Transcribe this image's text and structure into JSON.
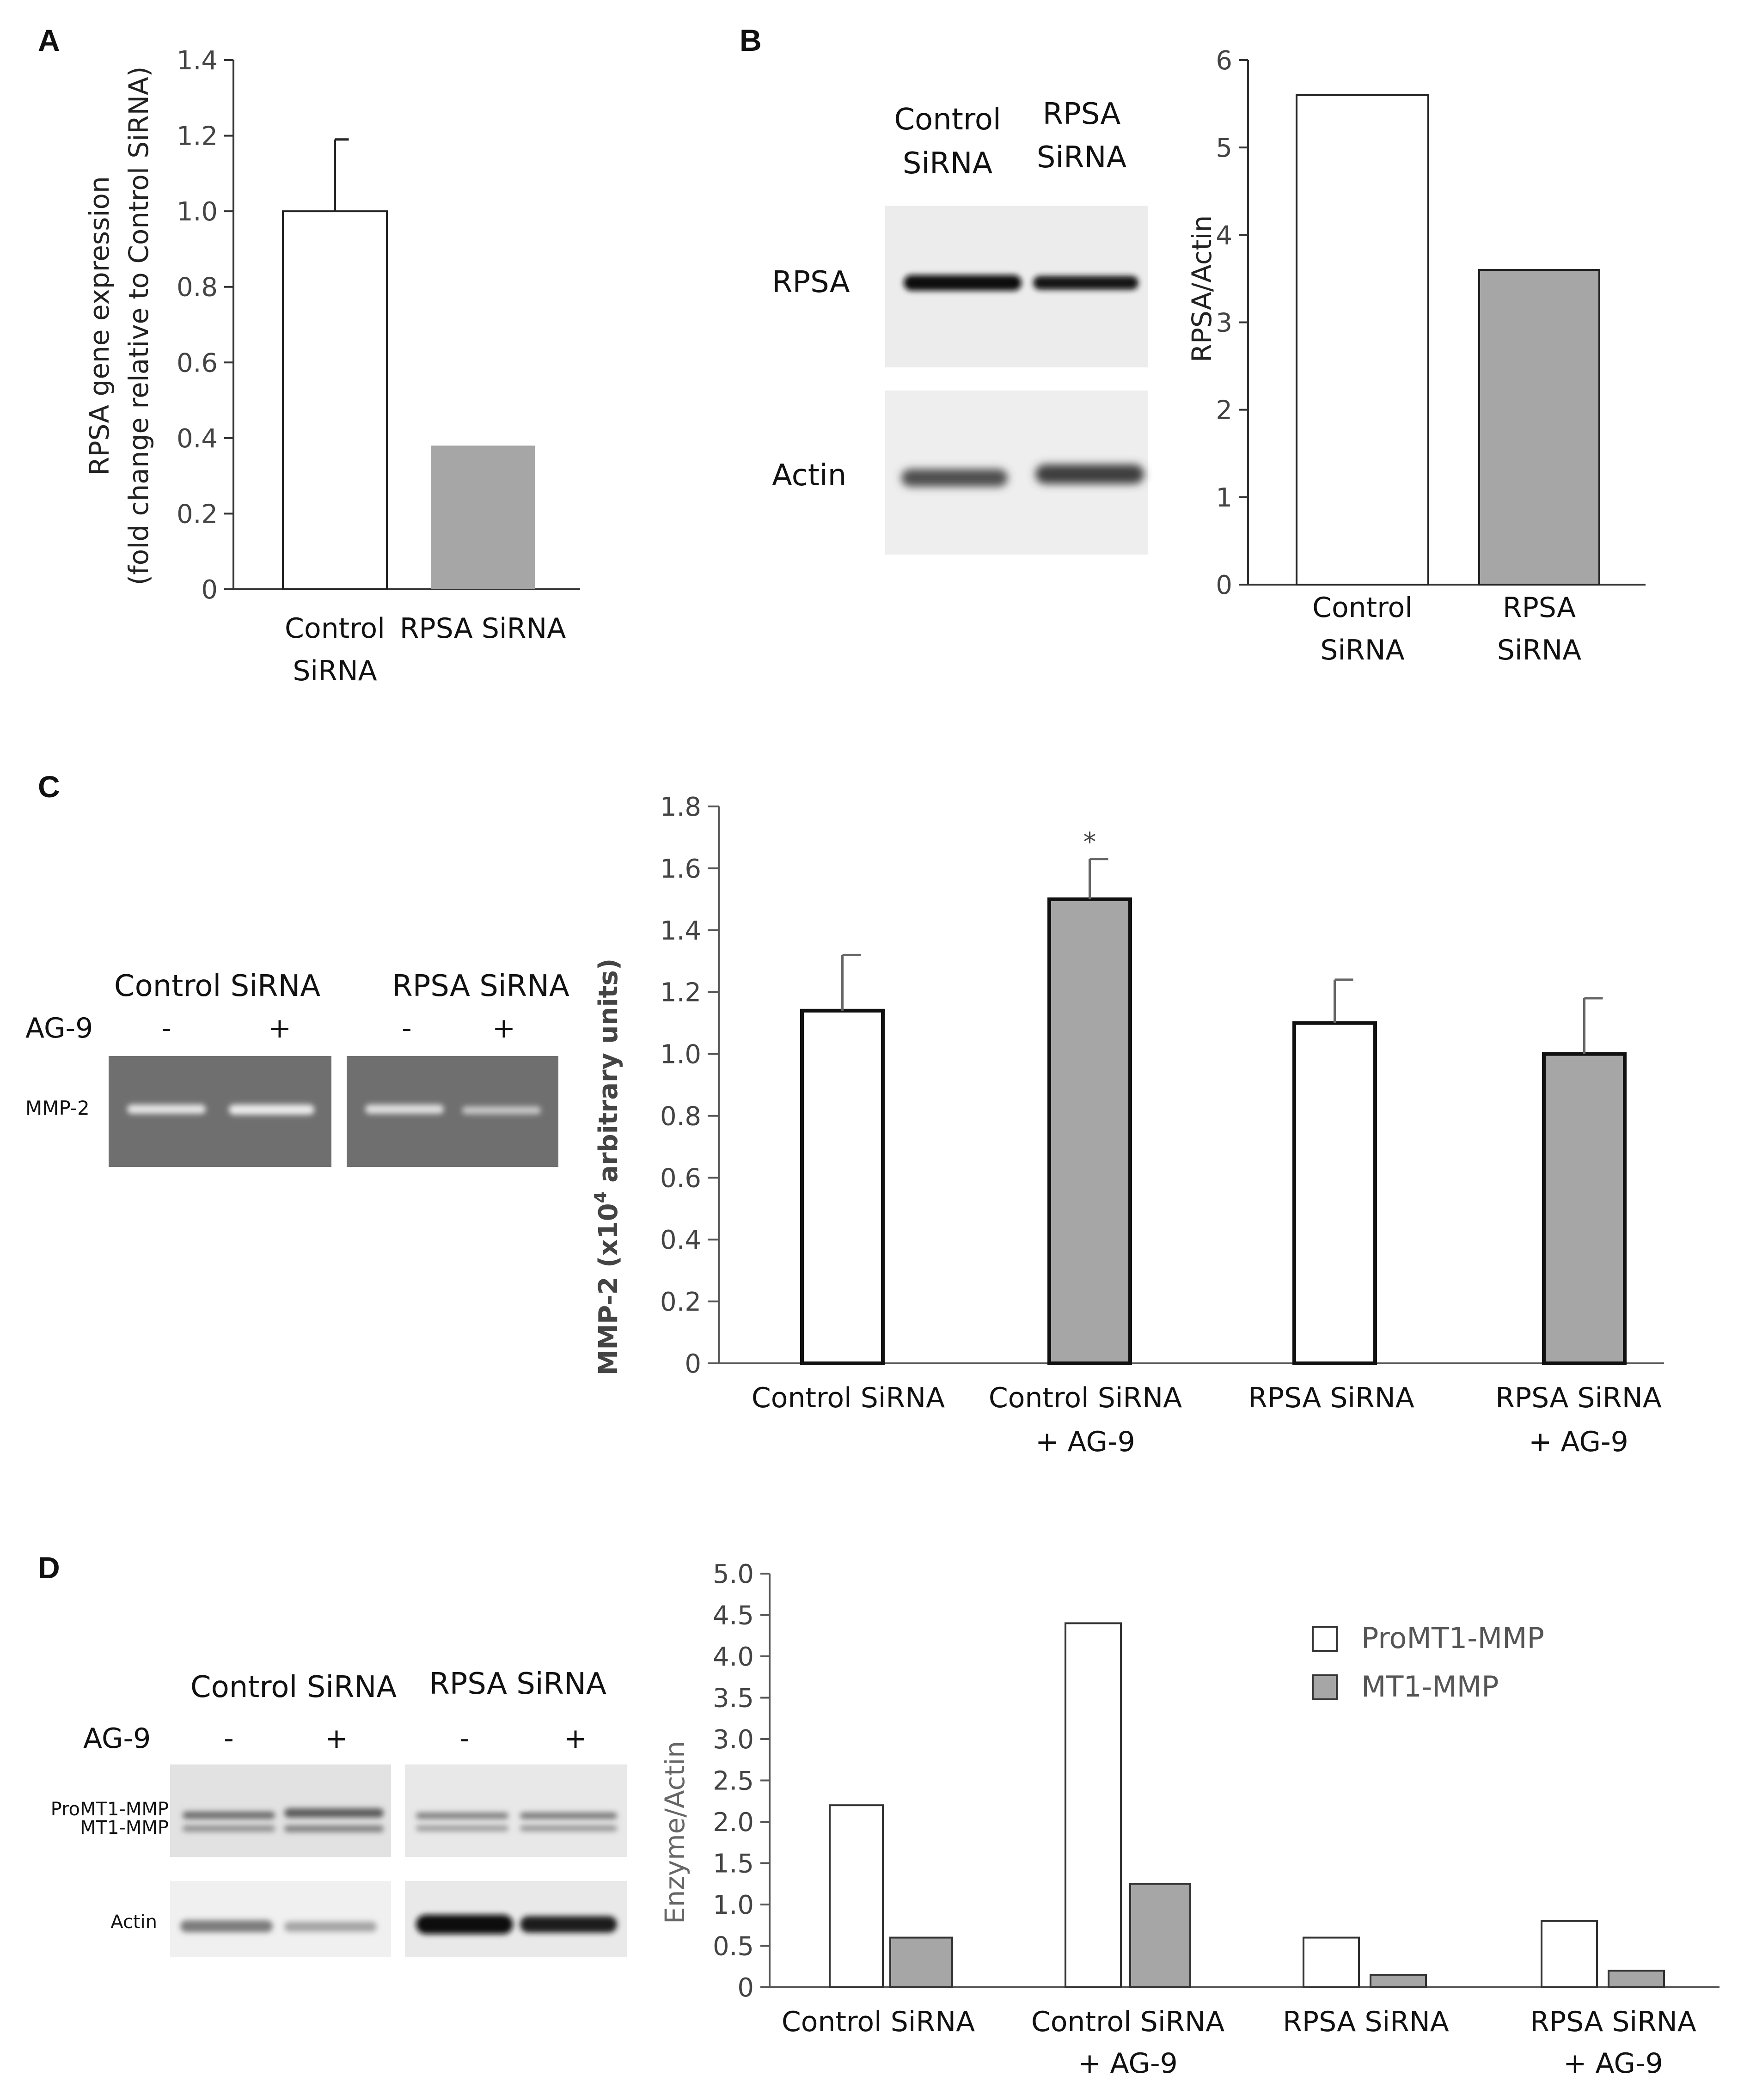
{
  "colors": {
    "white_bar": "#ffffff",
    "gray_bar": "#a6a6a6",
    "axis": "#333333",
    "gel_bg": "#6e6e6e"
  },
  "panels": {
    "A": {
      "letter": "A",
      "ylabel_line1": "RPSA gene expression",
      "ylabel_line2": "(fold change relative to Control SiRNA)"
    },
    "B": {
      "letter": "B",
      "blot_headers": [
        [
          "Control",
          "SiRNA"
        ],
        [
          "RPSA",
          "SiRNA"
        ]
      ],
      "blot_rows": [
        "RPSA",
        "Actin"
      ]
    },
    "C": {
      "letter": "C",
      "group_labels": [
        "Control  SiRNA",
        "RPSA SiRNA"
      ],
      "treatment_label": "AG-9",
      "lane_signs": [
        "-",
        "+",
        "-",
        "+"
      ],
      "band_label": "MMP-2",
      "ylabel_prefix": "MMP-2 (x10",
      "ylabel_sup": "4",
      "ylabel_suffix": " arbitrary units)"
    },
    "D": {
      "letter": "D",
      "group_labels": [
        "Control  SiRNA",
        "RPSA SiRNA"
      ],
      "treatment_label": "AG-9",
      "lane_signs": [
        "-",
        "+",
        "-",
        "+"
      ],
      "band_labels": [
        "ProMT1-MMP",
        "MT1-MMP"
      ],
      "actin_label": "Actin"
    }
  },
  "chart_data": [
    {
      "id": "A",
      "type": "bar",
      "categories": [
        [
          "Control",
          "SiRNA"
        ],
        [
          "RPSA SiRNA"
        ]
      ],
      "values": [
        1.0,
        0.38
      ],
      "errors": [
        0.19,
        null
      ],
      "fills": [
        "white",
        "gray"
      ],
      "ylabel": "RPSA gene expression (fold change relative to Control SiRNA)",
      "ylim": [
        0,
        1.4
      ],
      "yticks": [
        "0",
        "0.2",
        "0.4",
        "0.6",
        "0.8",
        "1.0",
        "1.2",
        "1.4"
      ]
    },
    {
      "id": "B",
      "type": "bar",
      "categories": [
        [
          "Control",
          "SiRNA"
        ],
        [
          "RPSA",
          "SiRNA"
        ]
      ],
      "values": [
        5.6,
        3.6
      ],
      "fills": [
        "white",
        "gray"
      ],
      "ylabel": "RPSA/Actin",
      "ylim": [
        0,
        6
      ],
      "yticks": [
        "0",
        "1",
        "2",
        "3",
        "4",
        "5",
        "6"
      ]
    },
    {
      "id": "C",
      "type": "bar",
      "categories": [
        [
          "Control  SiRNA"
        ],
        [
          "Control  SiRNA",
          "+ AG-9"
        ],
        [
          "RPSA SiRNA"
        ],
        [
          "RPSA SiRNA",
          "+ AG-9"
        ]
      ],
      "values": [
        1.14,
        1.5,
        1.1,
        1.0
      ],
      "errors": [
        0.18,
        0.13,
        0.14,
        0.18
      ],
      "fills": [
        "white",
        "gray",
        "white",
        "gray"
      ],
      "annotations": [
        "",
        "*",
        "",
        ""
      ],
      "ylabel": "MMP-2 (x10^4 arbitrary units)",
      "ylim": [
        0,
        1.8
      ],
      "yticks": [
        "0",
        "0.2",
        "0.4",
        "0.6",
        "0.8",
        "1.0",
        "1.2",
        "1.4",
        "1.6",
        "1.8"
      ]
    },
    {
      "id": "D",
      "type": "bar",
      "categories": [
        [
          "Control  SiRNA"
        ],
        [
          "Control  SiRNA",
          "+ AG-9"
        ],
        [
          "RPSA SiRNA"
        ],
        [
          "RPSA SiRNA",
          "+ AG-9"
        ]
      ],
      "series": [
        {
          "name": "ProMT1-MMP",
          "fill": "white",
          "values": [
            2.2,
            4.4,
            0.6,
            0.8
          ]
        },
        {
          "name": "MT1-MMP",
          "fill": "gray",
          "values": [
            0.6,
            1.25,
            0.15,
            0.2
          ]
        }
      ],
      "legend_position": "top-right",
      "ylabel": "Enzyme/Actin",
      "ylim": [
        0,
        5.0
      ],
      "yticks": [
        "0",
        "0.5",
        "1.0",
        "1.5",
        "2.0",
        "2.5",
        "3.0",
        "3.5",
        "4.0",
        "4.5",
        "5.0"
      ]
    }
  ]
}
